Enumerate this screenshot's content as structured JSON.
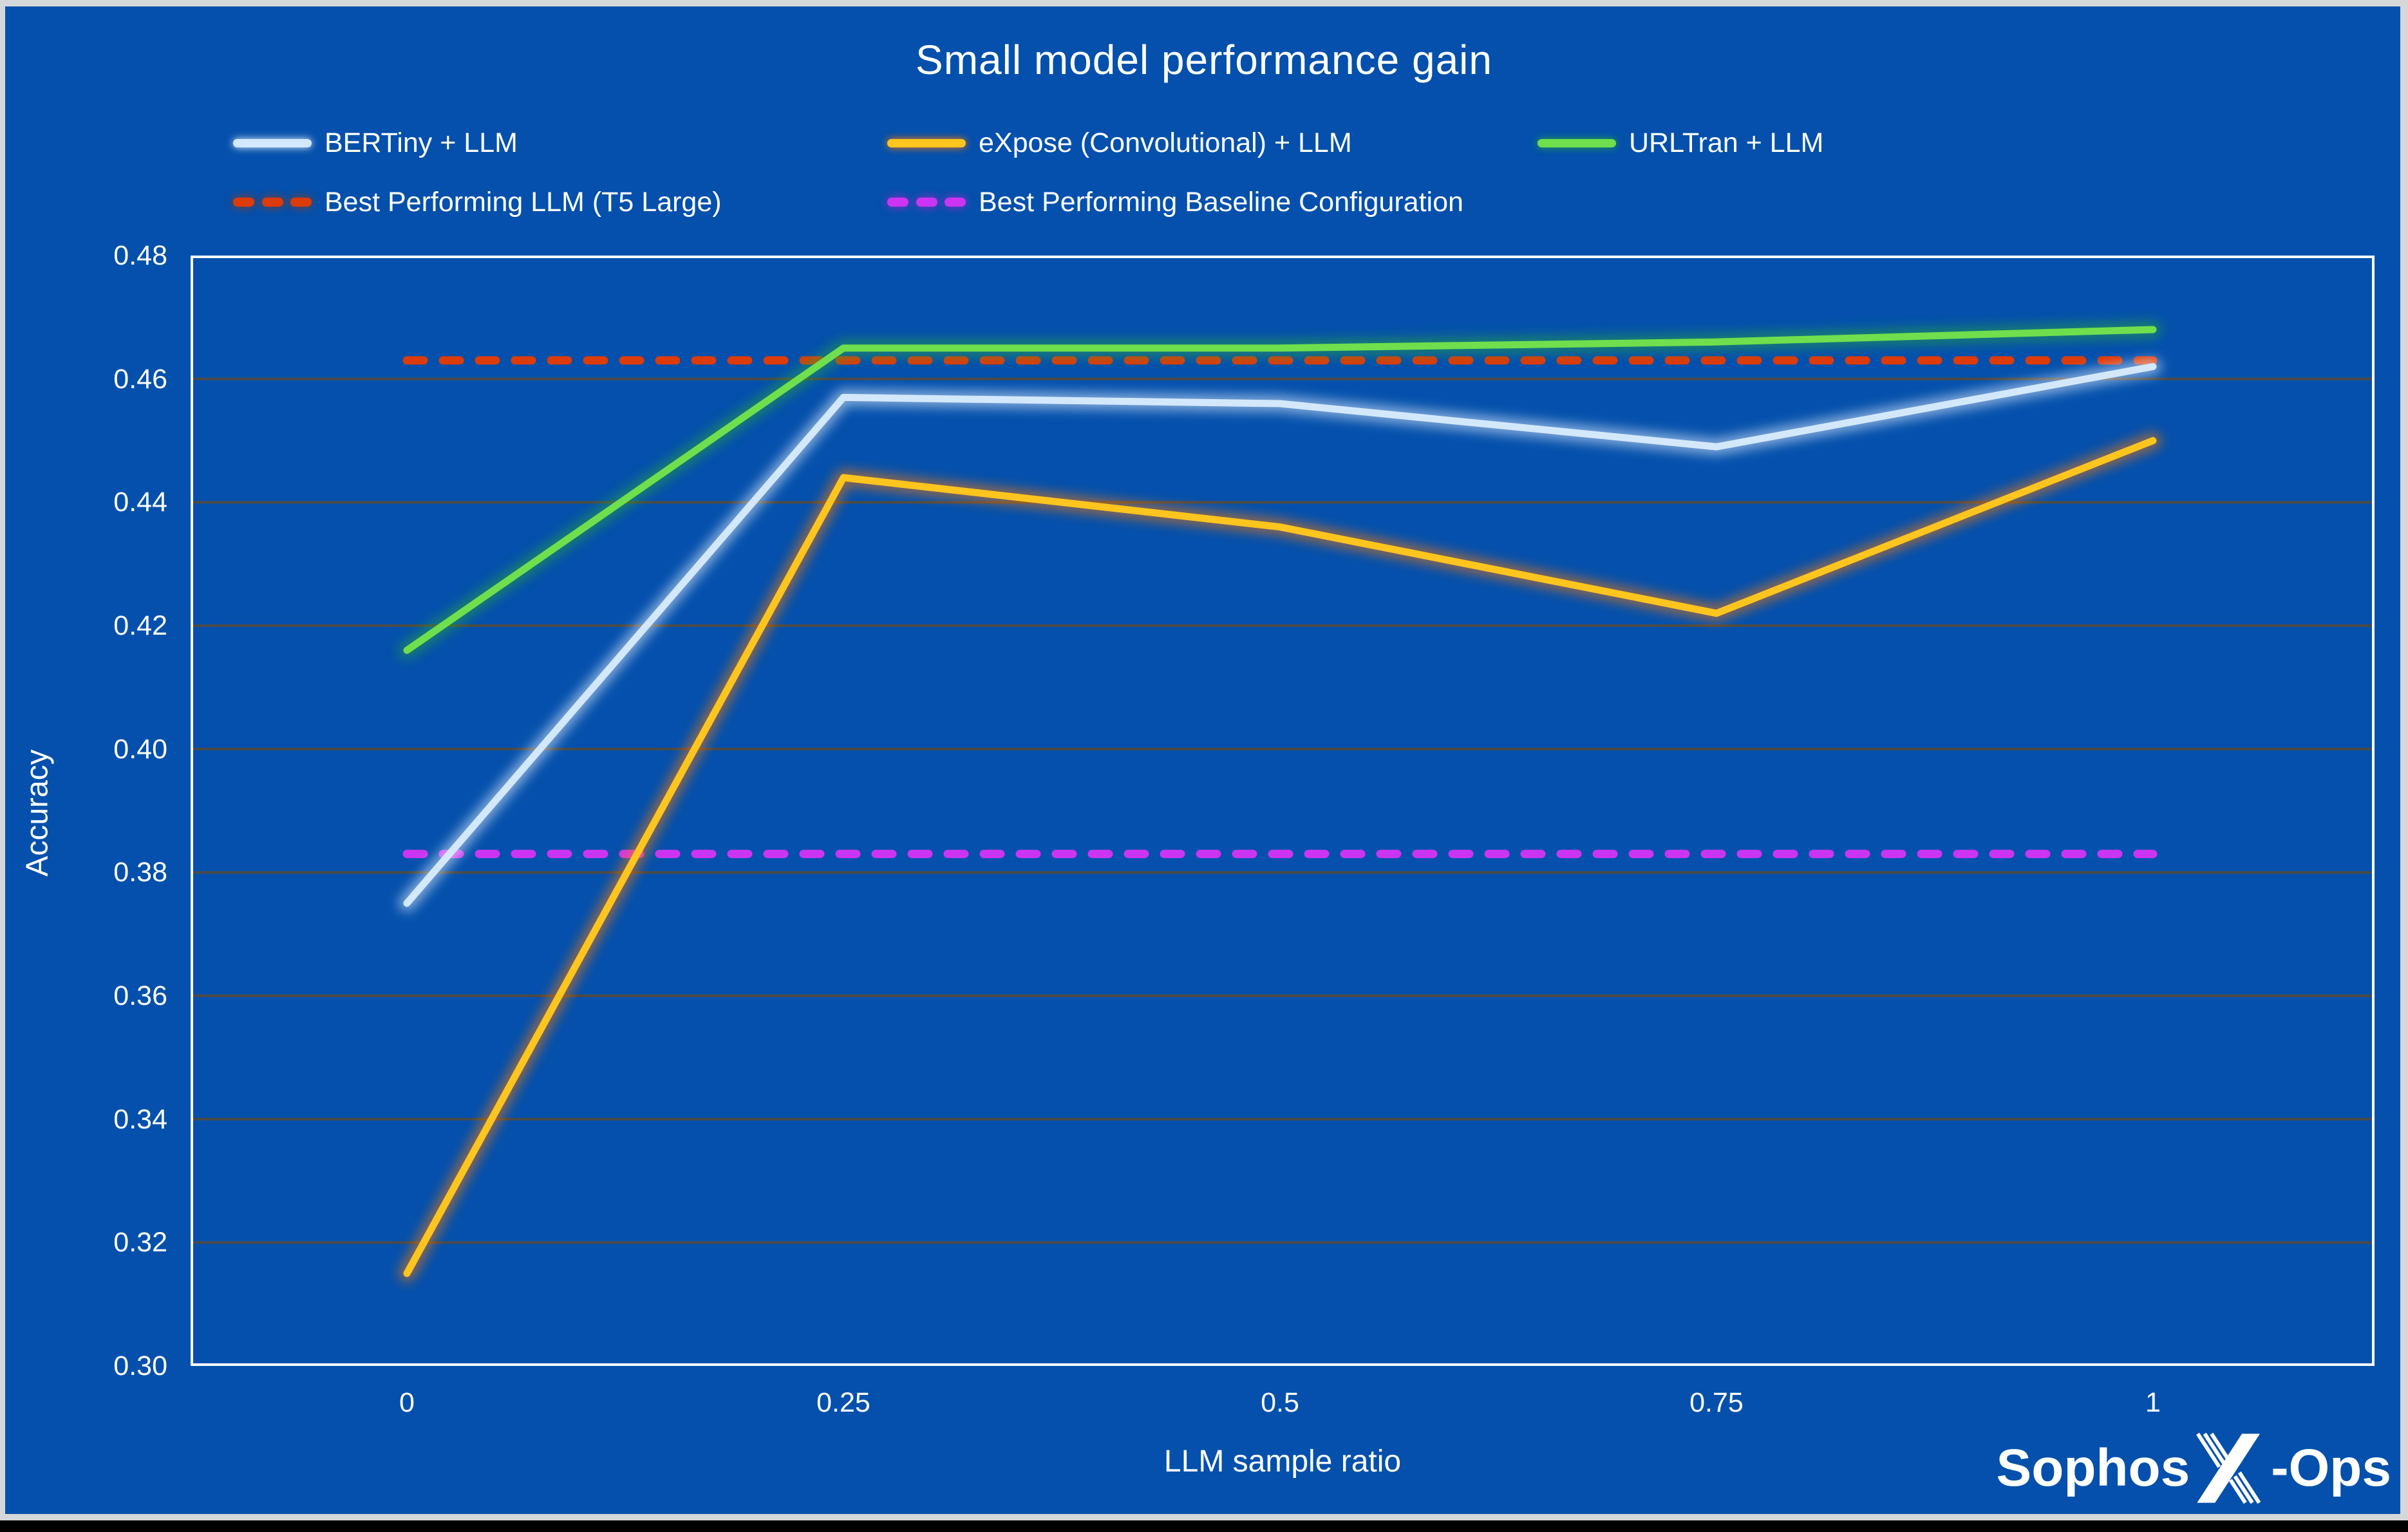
{
  "title": "Small model performance gain",
  "legend": {
    "row1": [
      {
        "label": "BERTiny + LLM",
        "color": "#d3e8fb",
        "glow": "#eaf4ff",
        "style": "solid"
      },
      {
        "label": "eXpose (Convolutional) + LLM",
        "color": "#ffc51f",
        "glow": "#ff7a00",
        "style": "solid"
      },
      {
        "label": "URLTran + LLM",
        "color": "#6fdf4d",
        "glow": "#2aa43e",
        "style": "solid"
      }
    ],
    "row2": [
      {
        "label": "Best Performing LLM (T5 Large)",
        "color": "#dc3b0a",
        "glow": "#9c3a12",
        "style": "dashed"
      },
      {
        "label": "Best Performing Baseline Configuration",
        "color": "#cb35f1",
        "glow": "#9d2bc9",
        "style": "dashed"
      }
    ]
  },
  "chart_data": {
    "type": "line",
    "title": "Small model performance gain",
    "xlabel": "LLM sample ratio",
    "ylabel": "Accuracy",
    "x": [
      0,
      0.25,
      0.5,
      0.75,
      1
    ],
    "x_tick_labels": [
      "0",
      "0.25",
      "0.5",
      "0.75",
      "1"
    ],
    "y_ticks": [
      0.48,
      0.46,
      0.44,
      0.42,
      0.4,
      0.38,
      0.36,
      0.34,
      0.32,
      0.3
    ],
    "y_tick_labels": [
      "0.48",
      "0.46",
      "0.44",
      "0.42",
      "0.40",
      "0.38",
      "0.36",
      "0.34",
      "0.32",
      "0.30"
    ],
    "ylim": [
      0.3,
      0.48
    ],
    "grid": true,
    "legend_position": "top",
    "series": [
      {
        "name": "BERTiny + LLM",
        "color": "#d3e8fb",
        "glow": "#eaf4ff",
        "values": [
          0.375,
          0.457,
          0.456,
          0.449,
          0.462
        ]
      },
      {
        "name": "eXpose (Convolutional) + LLM",
        "color": "#ffc51f",
        "glow": "#ff7a00",
        "values": [
          0.315,
          0.444,
          0.436,
          0.422,
          0.45
        ]
      },
      {
        "name": "URLTran + LLM",
        "color": "#6fdf4d",
        "glow": "#2aa43e",
        "values": [
          0.416,
          0.465,
          0.465,
          0.466,
          0.468
        ]
      }
    ],
    "reference_lines": [
      {
        "name": "Best Performing LLM (T5 Large)",
        "value": 0.463,
        "color": "#dc3b0a",
        "glow": "#9c3a12"
      },
      {
        "name": "Best Performing Baseline Configuration",
        "value": 0.383,
        "color": "#cb35f1",
        "glow": "#9d2bc9"
      }
    ]
  },
  "logo": {
    "prefix": "Sophos",
    "suffix": "-Ops"
  },
  "colors": {
    "background": "#0450ac",
    "frame": "#d6d7d9",
    "bottom_bar": "#000000",
    "grid": "#4c4a44",
    "plot_border": "#ffffff",
    "text": "#ffffff"
  }
}
